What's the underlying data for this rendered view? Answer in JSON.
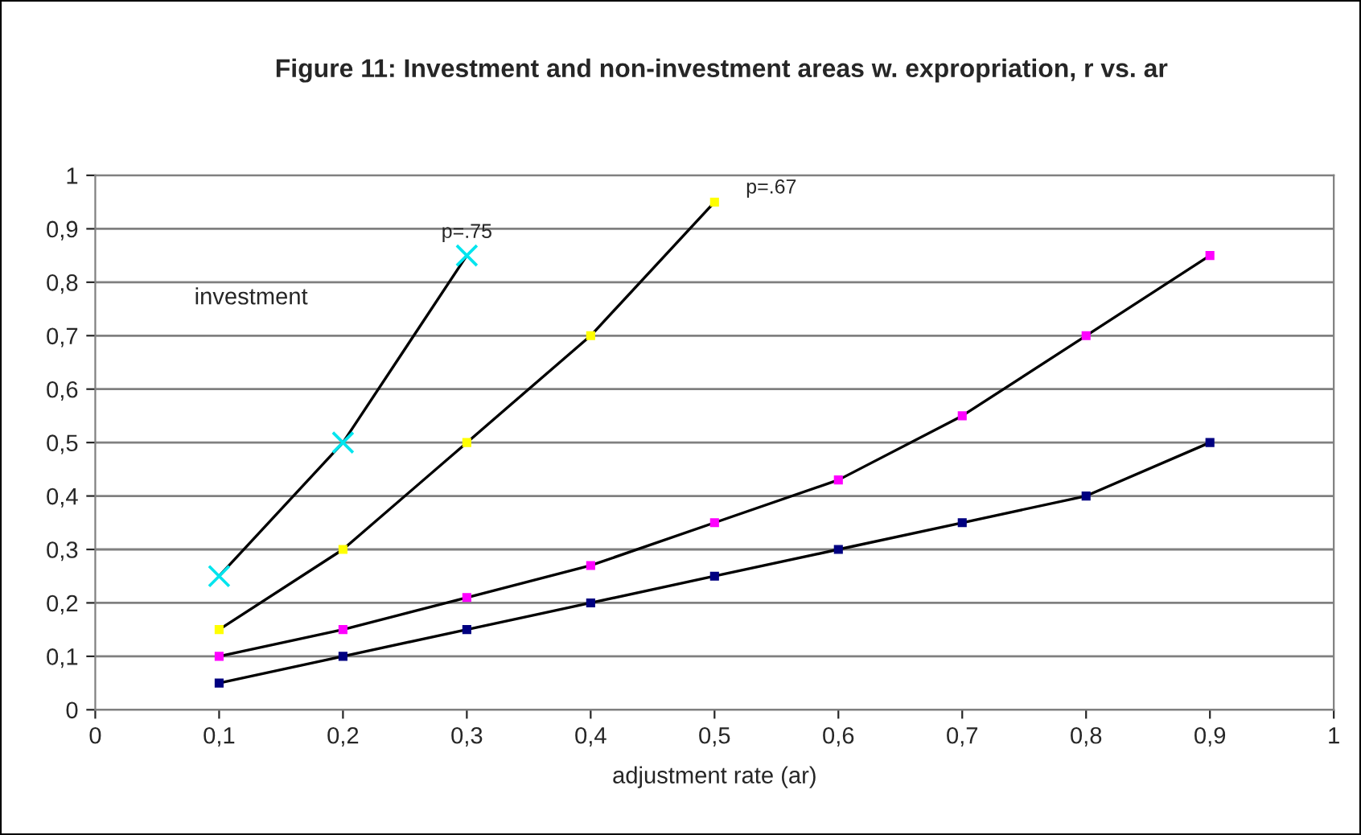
{
  "chart_data": {
    "type": "line",
    "title": "Figure 11: Investment and non-investment areas w. expropriation, r vs. ar",
    "xlabel": "adjustment rate (ar)",
    "xlim": [
      0,
      1
    ],
    "xticks": [
      0,
      {
        "value": 0.1,
        "label": "0,1"
      },
      {
        "value": 0.2,
        "label": "0,2"
      },
      {
        "value": 0.3,
        "label": "0,3"
      },
      {
        "value": 0.4,
        "label": "0,4"
      },
      {
        "value": 0.5,
        "label": "0,5"
      },
      {
        "value": 0.6,
        "label": "0,6"
      },
      {
        "value": 0.7,
        "label": "0,7"
      },
      {
        "value": 0.8,
        "label": "0,8"
      },
      {
        "value": 0.9,
        "label": "0,9"
      },
      1
    ],
    "ylim": [
      0,
      1
    ],
    "yticks": [
      0,
      {
        "value": 0.1,
        "label": "0,1"
      },
      {
        "value": 0.2,
        "label": "0,2"
      },
      {
        "value": 0.3,
        "label": "0,3"
      },
      {
        "value": 0.4,
        "label": "0,4"
      },
      {
        "value": 0.5,
        "label": "0,5"
      },
      {
        "value": 0.6,
        "label": "0,6"
      },
      {
        "value": 0.7,
        "label": "0,7"
      },
      {
        "value": 0.8,
        "label": "0,8"
      },
      {
        "value": 0.9,
        "label": "0,9"
      },
      1
    ],
    "grid": "y",
    "legend": false,
    "line_style": "solid",
    "series": [
      {
        "color": "#00e5ee",
        "marker": "cross",
        "x": [
          0.1,
          0.2,
          0.3
        ],
        "values": [
          0.25,
          0.5,
          0.85
        ]
      },
      {
        "color": "#ffff00",
        "marker": "square",
        "x": [
          0.1,
          0.2,
          0.3,
          0.4,
          0.5
        ],
        "values": [
          0.15,
          0.3,
          0.5,
          0.7,
          0.95
        ]
      },
      {
        "color": "#ff00ff",
        "marker": "square",
        "x": [
          0.1,
          0.2,
          0.3,
          0.4,
          0.5,
          0.6,
          0.7,
          0.8,
          0.9
        ],
        "values": [
          0.1,
          0.15,
          0.21,
          0.27,
          0.35,
          0.43,
          0.55,
          0.7,
          0.85
        ]
      },
      {
        "color": "#000080",
        "marker": "square",
        "x": [
          0.1,
          0.2,
          0.3,
          0.4,
          0.5,
          0.6,
          0.7,
          0.8,
          0.9
        ],
        "values": [
          0.05,
          0.1,
          0.15,
          0.2,
          0.25,
          0.3,
          0.35,
          0.4,
          0.5
        ]
      }
    ],
    "annotations": [
      "investment",
      {
        "text": "p=.75",
        "x": 0.3,
        "y": 0.85
      },
      {
        "text": "p=.67",
        "x": 0.5,
        "y": 0.95
      }
    ]
  }
}
